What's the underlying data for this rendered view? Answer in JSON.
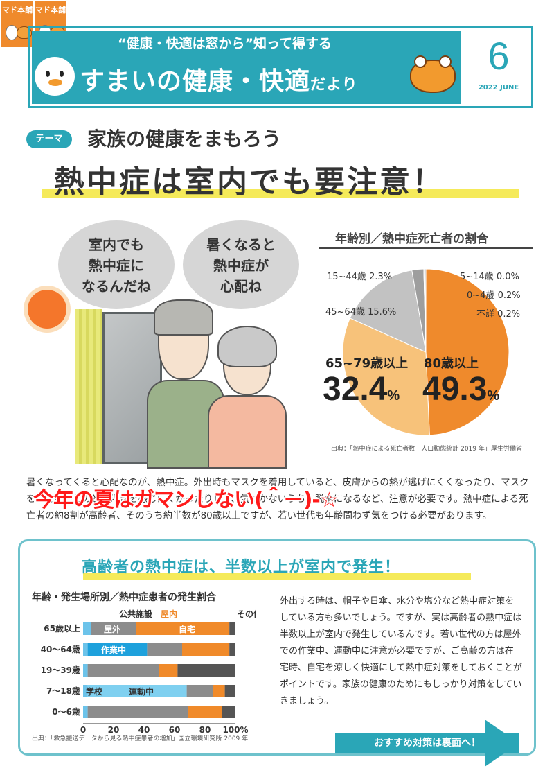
{
  "logos": [
    "マド本舗",
    "マド本舗"
  ],
  "header": {
    "tagline": "“健康・快適は窓から”知って得する",
    "title_main": "すまいの健康・快適",
    "title_suffix": "だより",
    "month": "6",
    "date": "2022 JUNE"
  },
  "theme": {
    "badge": "テーマ",
    "text": "家族の健康をまもろう",
    "headline": "熱中症は室内でも要注意！"
  },
  "bubbles": [
    {
      "lines": [
        "室内でも",
        "熱中症に",
        "なるんだね"
      ]
    },
    {
      "lines": [
        "暑くなると",
        "熱中症が",
        "心配ね"
      ]
    }
  ],
  "pie": {
    "title": "年齢別／熱中症死亡者の割合",
    "labels": {
      "l1544": "15~44歳 2.3%",
      "l514": "5~14歳 0.0%",
      "l04": "0~4歳 0.2%",
      "l4564": "45~64歳 15.6%",
      "unknown": "不詳 0.2%",
      "l6579": "65~79歳以上",
      "l80": "80歳以上"
    },
    "big": {
      "v6579": "32.4",
      "v80": "49.3",
      "unit": "%"
    },
    "source": "出典：「熱中症による死亡者数　人口動態統計 2019 年」厚生労働省"
  },
  "chart_data": [
    {
      "type": "pie",
      "title": "年齢別／熱中症死亡者の割合",
      "categories": [
        "80歳以上",
        "65~79歳以上",
        "45~64歳",
        "15~44歳",
        "5~14歳",
        "0~4歳",
        "不詳"
      ],
      "values": [
        49.3,
        32.4,
        15.6,
        2.3,
        0.0,
        0.2,
        0.2
      ],
      "colors": [
        "#ef8a2c",
        "#f7c27a",
        "#c2c2c2",
        "#9e9e9e",
        "#d9d9d9",
        "#e6e6e6",
        "#b0b0b0"
      ]
    },
    {
      "type": "bar",
      "title": "年齢・発生場所別／熱中症患者の発生割合",
      "categories": [
        "65歳以上",
        "40～64歳",
        "19～39歳",
        "7～18歳",
        "0～6歳"
      ],
      "ticks": [
        "0",
        "20",
        "40",
        "60",
        "80",
        "100%"
      ],
      "xlim": [
        0,
        100
      ],
      "series_labels": {
        "row0": [
          "公共施設",
          "屋外",
          "屋内",
          "自宅",
          "その他"
        ],
        "row1": [
          "作業中"
        ],
        "row3": [
          "学校",
          "運動中"
        ]
      },
      "series": [
        {
          "name": "公共施設",
          "color": "#6cc3ea",
          "values": [
            5,
            3,
            3,
            3,
            3
          ]
        },
        {
          "name": "作業中",
          "color": "#1ea1dc",
          "values": [
            0,
            39,
            0,
            0,
            0
          ]
        },
        {
          "name": "運動中",
          "color": "#7fd0f0",
          "values": [
            0,
            0,
            0,
            65,
            0
          ]
        },
        {
          "name": "屋外",
          "color": "#8c8c8c",
          "values": [
            30,
            23,
            47,
            17,
            66
          ]
        },
        {
          "name": "自宅",
          "color": "#f08a2a",
          "values": [
            61,
            31,
            12,
            8,
            22
          ]
        },
        {
          "name": "その他",
          "color": "#555555",
          "values": [
            4,
            4,
            38,
            7,
            9
          ]
        }
      ]
    }
  ],
  "body": {
    "para": "暑くなってくると心配なのが、熱中症。外出時もマスクを着用していると、皮膚からの熱が逃げにくくなったり、マスクをしているとのどの渇きを感じにくかったりして、気づかないうちに脱水になるなど、注意が必要です。熱中症による死亡者の約8割が高齢者、そのうち約半数が80歳以上ですが、若い世代も年齢問わず気をつける必要があります。",
    "overlay": "今年の夏はガマンしない(＾－)-☆"
  },
  "section": {
    "title": "高齢者の熱中症は、半数以上が室内で発生！",
    "bar_title": "年齢・発生場所別／熱中症患者の発生割合",
    "bar_source": "出典：「救急搬送データから見る熱中症患者の増加」国立環境研究所 2009 年",
    "side_text": "外出する時は、帽子や日傘、水分や塩分など熱中症対策をしている方も多いでしょう。ですが、実は高齢者の熱中症は半数以上が室内で発生しているんです。若い世代の方は屋外での作業中、運動中に注意が必要ですが、ご高齢の方は在宅時、自宅を涼しく快適にして熱中症対策をしておくことがポイントです。家族の健康のためにもしっかり対策をしていきましょう。",
    "cta": "おすすめ対策は裏面へ！"
  }
}
